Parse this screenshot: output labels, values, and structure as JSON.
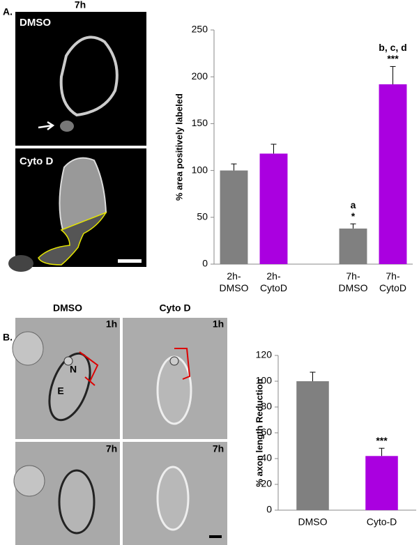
{
  "figure": {
    "panel_a": {
      "label": "A.",
      "time": "7h",
      "image_labels": [
        "DMSO",
        "Cyto D"
      ]
    },
    "panel_b": {
      "label": "B.",
      "column_titles": [
        "DMSO",
        "Cyto D"
      ],
      "time_labels": [
        "1h",
        "1h",
        "7h",
        "7h"
      ],
      "cell_labels": [
        "N",
        "E"
      ]
    }
  },
  "chart_data": [
    {
      "type": "bar",
      "ylabel": "% area positively labeled",
      "categories": [
        "2h-DMSO",
        "2h-CytoD",
        null,
        "7h-DMSO",
        "7h-CytoD"
      ],
      "values": [
        100,
        118,
        null,
        38,
        192
      ],
      "errors": [
        7,
        10,
        null,
        5,
        19
      ],
      "colors": [
        "#808080",
        "#aa00e0",
        null,
        "#808080",
        "#aa00e0"
      ],
      "letters": [
        null,
        null,
        null,
        "a",
        "b, c, d"
      ],
      "significance": [
        null,
        null,
        null,
        "*",
        "***"
      ],
      "ylim": [
        0,
        250
      ],
      "yticks": [
        0,
        50,
        100,
        150,
        200,
        250
      ],
      "grid": false
    },
    {
      "type": "bar",
      "ylabel": "% axon length Reduction",
      "categories": [
        "DMSO",
        "Cyto-D"
      ],
      "values": [
        100,
        42
      ],
      "errors": [
        7,
        6
      ],
      "colors": [
        "#808080",
        "#aa00e0"
      ],
      "significance": [
        null,
        "***"
      ],
      "ylim": [
        0,
        120
      ],
      "yticks": [
        0,
        20,
        40,
        60,
        80,
        100,
        120
      ],
      "grid": false
    }
  ]
}
